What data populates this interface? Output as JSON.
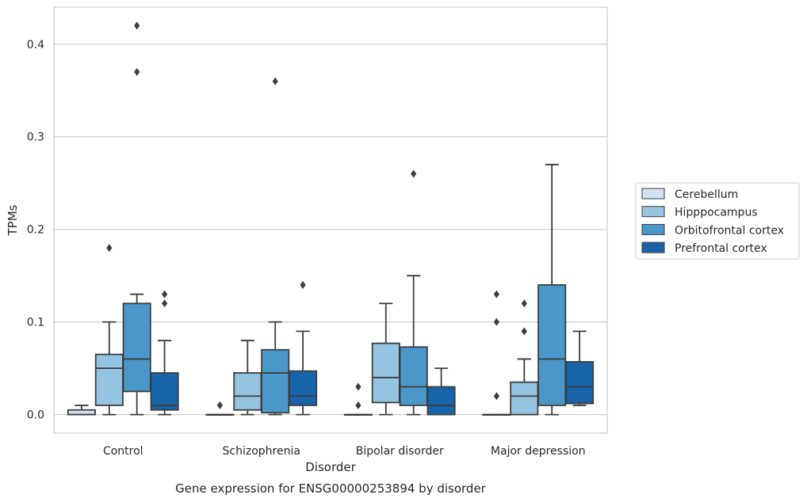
{
  "chart_data": {
    "type": "box",
    "title": "",
    "caption": "Gene expression for ENSG00000253894 by disorder",
    "xlabel": "Disorder",
    "ylabel": "TPMs",
    "ylim": [
      -0.02,
      0.44
    ],
    "yticks": [
      0.0,
      0.1,
      0.2,
      0.3,
      0.4
    ],
    "ytick_labels": [
      "0.0",
      "0.1",
      "0.2",
      "0.3",
      "0.4"
    ],
    "grid": "horizontal",
    "legend_placement": "center-right",
    "categories": [
      "Control",
      "Schizophrenia",
      "Bipolar disorder",
      "Major depression"
    ],
    "series": [
      {
        "name": "Cerebellum",
        "color": "#d0e1f2",
        "boxes": [
          {
            "whislo": 0.0,
            "q1": 0.0,
            "med": 0.0,
            "q3": 0.005,
            "whishi": 0.01,
            "fliers": []
          },
          {
            "whislo": 0.0,
            "q1": 0.0,
            "med": 0.0,
            "q3": 0.0,
            "whishi": 0.0,
            "fliers": [
              0.01
            ]
          },
          {
            "whislo": 0.0,
            "q1": 0.0,
            "med": 0.0,
            "q3": 0.0,
            "whishi": 0.0,
            "fliers": [
              0.01,
              0.03
            ]
          },
          {
            "whislo": 0.0,
            "q1": 0.0,
            "med": 0.0,
            "q3": 0.0,
            "whishi": 0.0,
            "fliers": [
              0.02,
              0.1,
              0.13
            ]
          }
        ]
      },
      {
        "name": "Hipppocampus",
        "color": "#94c4df",
        "boxes": [
          {
            "whislo": 0.0,
            "q1": 0.01,
            "med": 0.05,
            "q3": 0.065,
            "whishi": 0.1,
            "fliers": [
              0.18
            ]
          },
          {
            "whislo": 0.0,
            "q1": 0.005,
            "med": 0.02,
            "q3": 0.045,
            "whishi": 0.08,
            "fliers": []
          },
          {
            "whislo": 0.0,
            "q1": 0.013,
            "med": 0.04,
            "q3": 0.077,
            "whishi": 0.12,
            "fliers": []
          },
          {
            "whislo": 0.0,
            "q1": 0.0,
            "med": 0.02,
            "q3": 0.035,
            "whishi": 0.06,
            "fliers": [
              0.09,
              0.12
            ]
          }
        ]
      },
      {
        "name": "Orbitofrontal cortex",
        "color": "#4a98c9",
        "boxes": [
          {
            "whislo": 0.0,
            "q1": 0.025,
            "med": 0.06,
            "q3": 0.12,
            "whishi": 0.13,
            "fliers": [
              0.37,
              0.42
            ]
          },
          {
            "whislo": 0.0,
            "q1": 0.002,
            "med": 0.045,
            "q3": 0.07,
            "whishi": 0.1,
            "fliers": [
              0.36
            ]
          },
          {
            "whislo": 0.0,
            "q1": 0.01,
            "med": 0.03,
            "q3": 0.073,
            "whishi": 0.15,
            "fliers": [
              0.26
            ]
          },
          {
            "whislo": 0.0,
            "q1": 0.01,
            "med": 0.06,
            "q3": 0.14,
            "whishi": 0.27,
            "fliers": []
          }
        ]
      },
      {
        "name": "Prefrontal cortex",
        "color": "#1764ab",
        "boxes": [
          {
            "whislo": 0.0,
            "q1": 0.005,
            "med": 0.01,
            "q3": 0.045,
            "whishi": 0.08,
            "fliers": [
              0.12,
              0.13
            ]
          },
          {
            "whislo": 0.0,
            "q1": 0.01,
            "med": 0.02,
            "q3": 0.047,
            "whishi": 0.09,
            "fliers": [
              0.14
            ]
          },
          {
            "whislo": 0.0,
            "q1": 0.0,
            "med": 0.01,
            "q3": 0.03,
            "whishi": 0.05,
            "fliers": []
          },
          {
            "whislo": 0.01,
            "q1": 0.012,
            "med": 0.03,
            "q3": 0.057,
            "whishi": 0.09,
            "fliers": []
          }
        ]
      }
    ]
  }
}
